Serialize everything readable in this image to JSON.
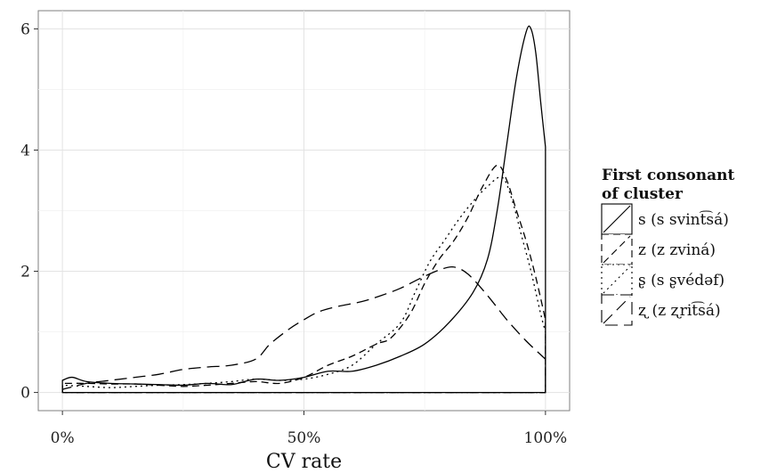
{
  "chart_data": {
    "type": "area",
    "xlabel": "CV rate",
    "ylabel": "",
    "xlim": [
      -5,
      105
    ],
    "ylim": [
      -0.3,
      6.3
    ],
    "x_ticks": [
      {
        "value": 0,
        "label": "0%"
      },
      {
        "value": 50,
        "label": "50%"
      },
      {
        "value": 100,
        "label": "100%"
      }
    ],
    "y_ticks": [
      {
        "value": 0,
        "label": "0"
      },
      {
        "value": 2,
        "label": "2"
      },
      {
        "value": 4,
        "label": "4"
      },
      {
        "value": 6,
        "label": "6"
      }
    ],
    "grid": true,
    "background": "#ffffff",
    "legend": {
      "title": "First consonant of cluster",
      "title_lines": [
        "First consonant",
        "of cluster"
      ],
      "placement": "right",
      "entries": [
        "s (s svint͡sá)",
        "z (z zviná)",
        "ʂ (s ʂvédəf)",
        "ʐ (z ʐrit͡sá)"
      ]
    },
    "series": [
      {
        "name": "s (s svint͡sá)",
        "dash": "solid",
        "points": [
          [
            0,
            0.2
          ],
          [
            2,
            0.25
          ],
          [
            5,
            0.18
          ],
          [
            10,
            0.15
          ],
          [
            15,
            0.14
          ],
          [
            20,
            0.13
          ],
          [
            25,
            0.12
          ],
          [
            30,
            0.15
          ],
          [
            35,
            0.13
          ],
          [
            40,
            0.22
          ],
          [
            45,
            0.2
          ],
          [
            50,
            0.25
          ],
          [
            55,
            0.35
          ],
          [
            60,
            0.35
          ],
          [
            65,
            0.45
          ],
          [
            70,
            0.6
          ],
          [
            75,
            0.8
          ],
          [
            80,
            1.15
          ],
          [
            85,
            1.65
          ],
          [
            88,
            2.2
          ],
          [
            90,
            3.0
          ],
          [
            92,
            4.1
          ],
          [
            94,
            5.2
          ],
          [
            96,
            5.95
          ],
          [
            97,
            6.0
          ],
          [
            98,
            5.6
          ],
          [
            99,
            4.8
          ],
          [
            100,
            4.05
          ],
          [
            100,
            0
          ]
        ]
      },
      {
        "name": "z (z zviná)",
        "dash": "medium",
        "points": [
          [
            0,
            0.15
          ],
          [
            5,
            0.15
          ],
          [
            10,
            0.14
          ],
          [
            15,
            0.14
          ],
          [
            20,
            0.12
          ],
          [
            25,
            0.1
          ],
          [
            30,
            0.12
          ],
          [
            35,
            0.15
          ],
          [
            40,
            0.18
          ],
          [
            45,
            0.15
          ],
          [
            50,
            0.25
          ],
          [
            55,
            0.45
          ],
          [
            60,
            0.6
          ],
          [
            65,
            0.8
          ],
          [
            68,
            0.9
          ],
          [
            72,
            1.3
          ],
          [
            75,
            1.8
          ],
          [
            78,
            2.2
          ],
          [
            81,
            2.5
          ],
          [
            84,
            2.9
          ],
          [
            87,
            3.4
          ],
          [
            90,
            3.75
          ],
          [
            92,
            3.5
          ],
          [
            94,
            3.0
          ],
          [
            96,
            2.5
          ],
          [
            98,
            1.9
          ],
          [
            100,
            1.2
          ],
          [
            100,
            0
          ]
        ]
      },
      {
        "name": "ʂ (s ʂvédəf)",
        "dash": "dotted",
        "points": [
          [
            0,
            0.12
          ],
          [
            5,
            0.1
          ],
          [
            10,
            0.08
          ],
          [
            15,
            0.1
          ],
          [
            20,
            0.12
          ],
          [
            25,
            0.13
          ],
          [
            30,
            0.15
          ],
          [
            35,
            0.18
          ],
          [
            40,
            0.22
          ],
          [
            45,
            0.2
          ],
          [
            50,
            0.22
          ],
          [
            55,
            0.3
          ],
          [
            60,
            0.45
          ],
          [
            65,
            0.8
          ],
          [
            70,
            1.15
          ],
          [
            73,
            1.65
          ],
          [
            76,
            2.15
          ],
          [
            79,
            2.5
          ],
          [
            82,
            2.85
          ],
          [
            85,
            3.15
          ],
          [
            88,
            3.4
          ],
          [
            91,
            3.55
          ],
          [
            93,
            3.2
          ],
          [
            95,
            2.6
          ],
          [
            97,
            2.0
          ],
          [
            99,
            1.3
          ],
          [
            100,
            1.0
          ],
          [
            100,
            0
          ]
        ]
      },
      {
        "name": "ʐ (z ʐrit͡sá)",
        "dash": "long",
        "points": [
          [
            0,
            0.05
          ],
          [
            5,
            0.15
          ],
          [
            10,
            0.2
          ],
          [
            15,
            0.25
          ],
          [
            20,
            0.3
          ],
          [
            25,
            0.38
          ],
          [
            30,
            0.42
          ],
          [
            35,
            0.45
          ],
          [
            40,
            0.55
          ],
          [
            43,
            0.8
          ],
          [
            47,
            1.05
          ],
          [
            50,
            1.2
          ],
          [
            53,
            1.33
          ],
          [
            57,
            1.42
          ],
          [
            62,
            1.5
          ],
          [
            66,
            1.6
          ],
          [
            70,
            1.72
          ],
          [
            74,
            1.88
          ],
          [
            78,
            2.02
          ],
          [
            81,
            2.07
          ],
          [
            84,
            1.95
          ],
          [
            88,
            1.6
          ],
          [
            92,
            1.2
          ],
          [
            96,
            0.85
          ],
          [
            100,
            0.55
          ],
          [
            100,
            0
          ]
        ]
      }
    ]
  }
}
